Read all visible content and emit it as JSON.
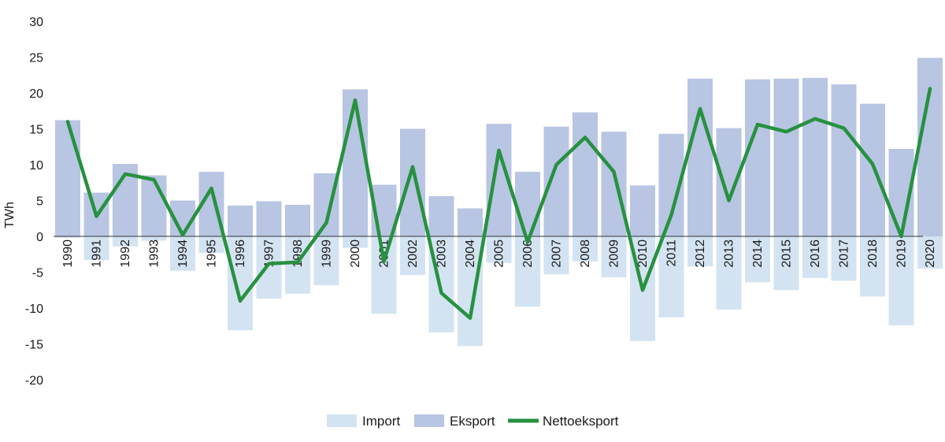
{
  "colors": {
    "import": "#d3e3f1",
    "eksport": "#b8c5e3",
    "netto": "#27913f",
    "axis": "#333333"
  },
  "chart_data": {
    "type": "bar",
    "categories": [
      "1990",
      "1991",
      "1992",
      "1993",
      "1994",
      "1995",
      "1996",
      "1997",
      "1998",
      "1999",
      "2000",
      "2001",
      "2002",
      "2003",
      "2004",
      "2005",
      "2006",
      "2007",
      "2008",
      "2009",
      "2010",
      "2011",
      "2012",
      "2013",
      "2014",
      "2015",
      "2016",
      "2017",
      "2018",
      "2019",
      "2020"
    ],
    "series": [
      {
        "name": "Import",
        "kind": "bar",
        "values": [
          -0.2,
          -3.3,
          -1.4,
          -0.6,
          -4.8,
          -2.3,
          -13.1,
          -8.7,
          -8.0,
          -6.8,
          -1.6,
          -10.8,
          -5.4,
          -13.4,
          -15.3,
          -3.7,
          -9.8,
          -5.3,
          -3.5,
          -5.7,
          -14.6,
          -11.3,
          -4.2,
          -10.2,
          -6.4,
          -7.5,
          -5.8,
          -6.2,
          -8.4,
          -12.4,
          -4.5
        ]
      },
      {
        "name": "Eksport",
        "kind": "bar",
        "values": [
          16.2,
          6.1,
          10.1,
          8.5,
          5.0,
          9.0,
          4.3,
          4.9,
          4.4,
          8.8,
          20.5,
          7.2,
          15.0,
          5.6,
          3.9,
          15.7,
          9.0,
          15.3,
          17.3,
          14.6,
          7.1,
          14.3,
          22.0,
          15.1,
          21.9,
          22.0,
          22.1,
          21.2,
          18.5,
          12.2,
          24.9
        ]
      },
      {
        "name": "Nettoeksport",
        "kind": "line",
        "values": [
          16.0,
          2.8,
          8.7,
          7.9,
          0.2,
          6.7,
          -9.0,
          -3.8,
          -3.6,
          1.9,
          19.0,
          -3.5,
          9.7,
          -7.9,
          -11.4,
          12.0,
          -0.8,
          10.0,
          13.8,
          9.0,
          -7.5,
          3.0,
          17.8,
          5.0,
          15.6,
          14.6,
          16.4,
          15.1,
          10.1,
          0.0,
          20.6
        ]
      }
    ],
    "ylabel": "TWh",
    "ylim": [
      -20,
      30
    ],
    "yticks": [
      "30",
      "25",
      "20",
      "15",
      "10",
      "5",
      "0",
      "-5",
      "-10",
      "-15",
      "-20"
    ],
    "grid": false,
    "legend_position": "bottom-center"
  }
}
